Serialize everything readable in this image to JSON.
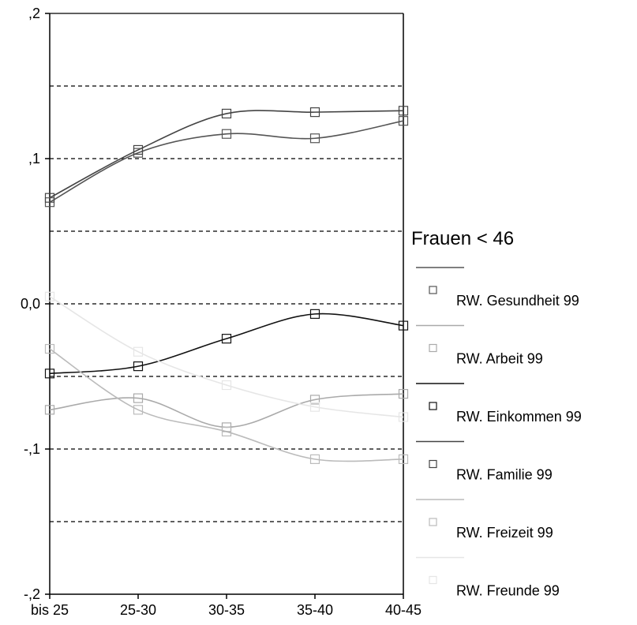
{
  "chart_data": {
    "type": "line",
    "title": "",
    "xlabel": "",
    "ylabel": "",
    "categories": [
      "bis 25",
      "25-30",
      "30-35",
      "35-40",
      "40-45"
    ],
    "ylim": [
      -0.2,
      0.2
    ],
    "yticks": [
      0.2,
      0.1,
      0.0,
      -0.1,
      -0.2
    ],
    "ytick_labels": [
      ",2",
      ",1",
      "0,0",
      "-,1",
      "-,2"
    ],
    "grid": "horizontal dashed at every 0.05",
    "legend": {
      "title": "Frauen < 46",
      "placement": "right",
      "marker": "hollow-square"
    },
    "series": [
      {
        "name": "RW. Gesundheit 99",
        "color": "#555555",
        "values": [
          0.07,
          0.104,
          0.117,
          0.114,
          0.126
        ]
      },
      {
        "name": "RW. Arbeit 99",
        "color": "#aaaaaa",
        "values": [
          -0.073,
          -0.065,
          -0.085,
          -0.066,
          -0.062
        ]
      },
      {
        "name": "RW. Einkommen 99",
        "color": "#111111",
        "values": [
          -0.048,
          -0.043,
          -0.024,
          -0.007,
          -0.015
        ]
      },
      {
        "name": "RW. Familie 99",
        "color": "#444444",
        "values": [
          0.073,
          0.106,
          0.131,
          0.132,
          0.133
        ]
      },
      {
        "name": "RW. Freizeit 99",
        "color": "#bbbbbb",
        "values": [
          -0.031,
          -0.073,
          -0.088,
          -0.107,
          -0.107
        ]
      },
      {
        "name": "RW. Freunde 99",
        "color": "#e6e6e6",
        "values": [
          0.005,
          -0.033,
          -0.056,
          -0.071,
          -0.078
        ]
      }
    ]
  }
}
